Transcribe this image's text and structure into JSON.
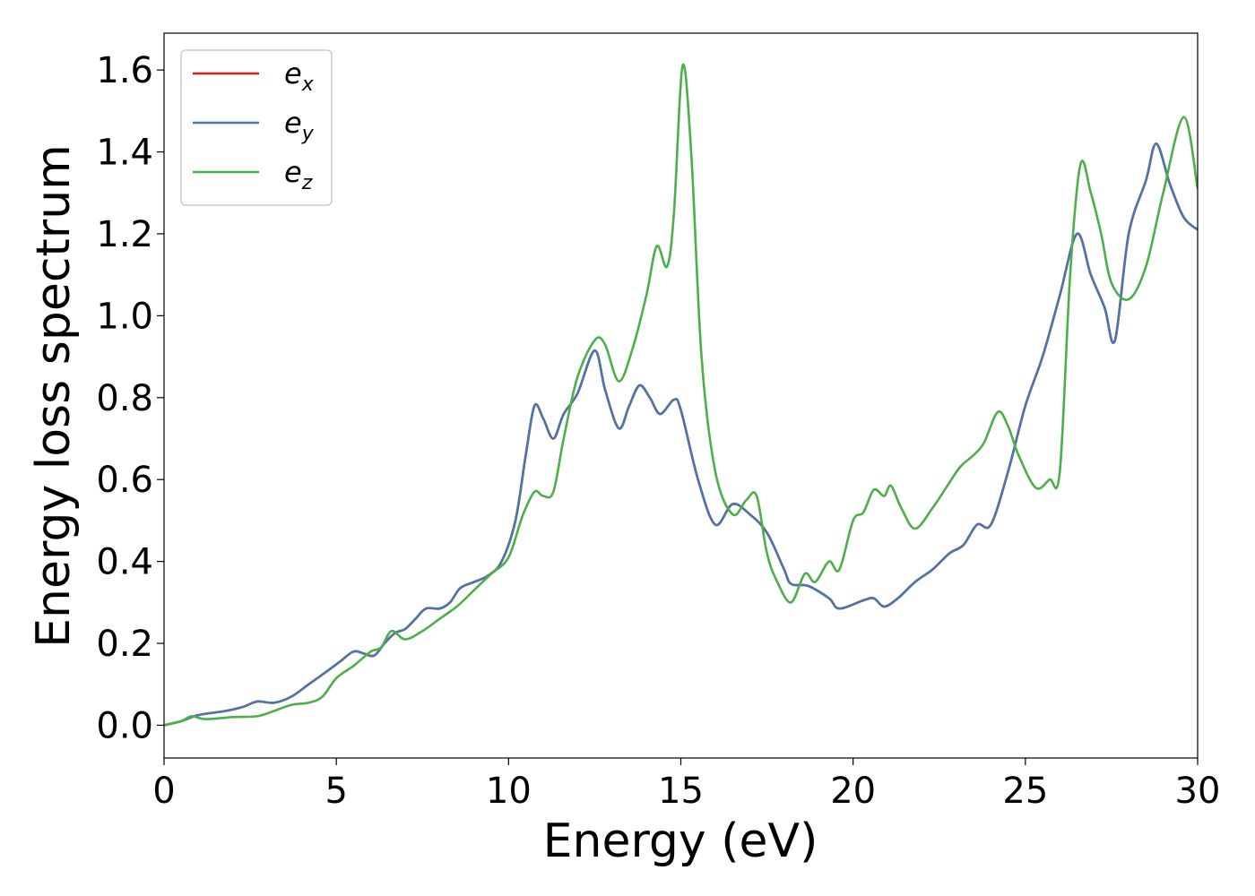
{
  "chart_data": {
    "type": "line",
    "xlabel": "Energy (eV)",
    "ylabel": "Energy loss spectrum",
    "xlim": [
      0,
      30
    ],
    "ylim": [
      -0.08,
      1.69
    ],
    "xticks": [
      0,
      5,
      10,
      15,
      20,
      25,
      30
    ],
    "xtick_labels": [
      "0",
      "5",
      "10",
      "15",
      "20",
      "25",
      "30"
    ],
    "yticks": [
      0.0,
      0.2,
      0.4,
      0.6,
      0.8,
      1.0,
      1.2,
      1.4,
      1.6
    ],
    "ytick_labels": [
      "0.0",
      "0.2",
      "0.4",
      "0.6",
      "0.8",
      "1.0",
      "1.2",
      "1.4",
      "1.6"
    ],
    "grid": false,
    "legend_position": "upper-left",
    "series": [
      {
        "name": "e_x",
        "legend_base": "e",
        "legend_sub": "x",
        "color": "#e41a1c",
        "points": [
          [
            0,
            0.0
          ],
          [
            0.5,
            0.01
          ],
          [
            1,
            0.025
          ],
          [
            1.8,
            0.035
          ],
          [
            2.3,
            0.045
          ],
          [
            2.7,
            0.058
          ],
          [
            3.2,
            0.055
          ],
          [
            3.7,
            0.07
          ],
          [
            4.2,
            0.1
          ],
          [
            4.7,
            0.13
          ],
          [
            5.1,
            0.155
          ],
          [
            5.5,
            0.18
          ],
          [
            5.8,
            0.175
          ],
          [
            6.1,
            0.17
          ],
          [
            6.4,
            0.2
          ],
          [
            6.7,
            0.225
          ],
          [
            7,
            0.235
          ],
          [
            7.3,
            0.26
          ],
          [
            7.6,
            0.285
          ],
          [
            8,
            0.285
          ],
          [
            8.3,
            0.3
          ],
          [
            8.6,
            0.335
          ],
          [
            9,
            0.35
          ],
          [
            9.4,
            0.365
          ],
          [
            9.8,
            0.4
          ],
          [
            10.2,
            0.5
          ],
          [
            10.5,
            0.66
          ],
          [
            10.75,
            0.78
          ],
          [
            11,
            0.75
          ],
          [
            11.3,
            0.7
          ],
          [
            11.6,
            0.76
          ],
          [
            12,
            0.81
          ],
          [
            12.5,
            0.915
          ],
          [
            12.8,
            0.82
          ],
          [
            13.2,
            0.725
          ],
          [
            13.5,
            0.78
          ],
          [
            13.8,
            0.83
          ],
          [
            14.1,
            0.8
          ],
          [
            14.4,
            0.76
          ],
          [
            14.8,
            0.795
          ],
          [
            15,
            0.77
          ],
          [
            15.5,
            0.6
          ],
          [
            16,
            0.49
          ],
          [
            16.5,
            0.54
          ],
          [
            17,
            0.515
          ],
          [
            17.5,
            0.47
          ],
          [
            18,
            0.38
          ],
          [
            18.2,
            0.345
          ],
          [
            18.7,
            0.34
          ],
          [
            19.3,
            0.31
          ],
          [
            19.6,
            0.285
          ],
          [
            20.3,
            0.305
          ],
          [
            20.6,
            0.31
          ],
          [
            20.9,
            0.29
          ],
          [
            21.3,
            0.31
          ],
          [
            21.8,
            0.35
          ],
          [
            22.3,
            0.38
          ],
          [
            22.8,
            0.42
          ],
          [
            23.2,
            0.44
          ],
          [
            23.6,
            0.49
          ],
          [
            24,
            0.49
          ],
          [
            24.5,
            0.62
          ],
          [
            25,
            0.78
          ],
          [
            25.5,
            0.9
          ],
          [
            26,
            1.05
          ],
          [
            26.5,
            1.2
          ],
          [
            26.9,
            1.1
          ],
          [
            27.3,
            1.02
          ],
          [
            27.6,
            0.94
          ],
          [
            28,
            1.2
          ],
          [
            28.5,
            1.33
          ],
          [
            28.8,
            1.42
          ],
          [
            29.2,
            1.32
          ],
          [
            29.6,
            1.24
          ],
          [
            30,
            1.21
          ]
        ]
      },
      {
        "name": "e_y",
        "legend_base": "e",
        "legend_sub": "y",
        "color": "#4a76aa",
        "points": [
          [
            0,
            0.0
          ],
          [
            0.5,
            0.01
          ],
          [
            1,
            0.025
          ],
          [
            1.8,
            0.035
          ],
          [
            2.3,
            0.045
          ],
          [
            2.7,
            0.058
          ],
          [
            3.2,
            0.055
          ],
          [
            3.7,
            0.07
          ],
          [
            4.2,
            0.1
          ],
          [
            4.7,
            0.13
          ],
          [
            5.1,
            0.155
          ],
          [
            5.5,
            0.18
          ],
          [
            5.8,
            0.175
          ],
          [
            6.1,
            0.17
          ],
          [
            6.4,
            0.2
          ],
          [
            6.7,
            0.225
          ],
          [
            7,
            0.235
          ],
          [
            7.3,
            0.26
          ],
          [
            7.6,
            0.285
          ],
          [
            8,
            0.285
          ],
          [
            8.3,
            0.3
          ],
          [
            8.6,
            0.335
          ],
          [
            9,
            0.35
          ],
          [
            9.4,
            0.365
          ],
          [
            9.8,
            0.4
          ],
          [
            10.2,
            0.5
          ],
          [
            10.5,
            0.66
          ],
          [
            10.75,
            0.78
          ],
          [
            11,
            0.75
          ],
          [
            11.3,
            0.7
          ],
          [
            11.6,
            0.76
          ],
          [
            12,
            0.81
          ],
          [
            12.5,
            0.915
          ],
          [
            12.8,
            0.82
          ],
          [
            13.2,
            0.725
          ],
          [
            13.5,
            0.78
          ],
          [
            13.8,
            0.83
          ],
          [
            14.1,
            0.8
          ],
          [
            14.4,
            0.76
          ],
          [
            14.8,
            0.795
          ],
          [
            15,
            0.77
          ],
          [
            15.5,
            0.6
          ],
          [
            16,
            0.49
          ],
          [
            16.5,
            0.54
          ],
          [
            17,
            0.515
          ],
          [
            17.5,
            0.47
          ],
          [
            18,
            0.38
          ],
          [
            18.2,
            0.345
          ],
          [
            18.7,
            0.34
          ],
          [
            19.3,
            0.31
          ],
          [
            19.6,
            0.285
          ],
          [
            20.3,
            0.305
          ],
          [
            20.6,
            0.31
          ],
          [
            20.9,
            0.29
          ],
          [
            21.3,
            0.31
          ],
          [
            21.8,
            0.35
          ],
          [
            22.3,
            0.38
          ],
          [
            22.8,
            0.42
          ],
          [
            23.2,
            0.44
          ],
          [
            23.6,
            0.49
          ],
          [
            24,
            0.49
          ],
          [
            24.5,
            0.62
          ],
          [
            25,
            0.78
          ],
          [
            25.5,
            0.9
          ],
          [
            26,
            1.05
          ],
          [
            26.5,
            1.2
          ],
          [
            26.9,
            1.1
          ],
          [
            27.3,
            1.02
          ],
          [
            27.6,
            0.94
          ],
          [
            28,
            1.2
          ],
          [
            28.5,
            1.33
          ],
          [
            28.8,
            1.42
          ],
          [
            29.2,
            1.32
          ],
          [
            29.6,
            1.24
          ],
          [
            30,
            1.21
          ]
        ]
      },
      {
        "name": "e_z",
        "legend_base": "e",
        "legend_sub": "z",
        "color": "#4daf4a",
        "points": [
          [
            0,
            0.0
          ],
          [
            0.5,
            0.01
          ],
          [
            0.8,
            0.022
          ],
          [
            1.2,
            0.015
          ],
          [
            2,
            0.02
          ],
          [
            2.7,
            0.022
          ],
          [
            3.2,
            0.035
          ],
          [
            3.7,
            0.05
          ],
          [
            4.2,
            0.055
          ],
          [
            4.6,
            0.07
          ],
          [
            5,
            0.115
          ],
          [
            5.5,
            0.145
          ],
          [
            6,
            0.18
          ],
          [
            6.3,
            0.19
          ],
          [
            6.6,
            0.23
          ],
          [
            7,
            0.21
          ],
          [
            7.5,
            0.23
          ],
          [
            8,
            0.26
          ],
          [
            8.5,
            0.29
          ],
          [
            9,
            0.33
          ],
          [
            9.5,
            0.37
          ],
          [
            10,
            0.41
          ],
          [
            10.4,
            0.51
          ],
          [
            10.75,
            0.57
          ],
          [
            11,
            0.56
          ],
          [
            11.3,
            0.57
          ],
          [
            11.6,
            0.7
          ],
          [
            12,
            0.85
          ],
          [
            12.5,
            0.94
          ],
          [
            12.8,
            0.93
          ],
          [
            13.2,
            0.84
          ],
          [
            13.6,
            0.92
          ],
          [
            14,
            1.05
          ],
          [
            14.3,
            1.17
          ],
          [
            14.6,
            1.12
          ],
          [
            14.8,
            1.25
          ],
          [
            15.05,
            1.61
          ],
          [
            15.3,
            1.4
          ],
          [
            15.6,
            0.9
          ],
          [
            16,
            0.62
          ],
          [
            16.5,
            0.515
          ],
          [
            16.9,
            0.55
          ],
          [
            17.2,
            0.56
          ],
          [
            17.5,
            0.42
          ],
          [
            17.8,
            0.35
          ],
          [
            18.2,
            0.3
          ],
          [
            18.6,
            0.37
          ],
          [
            18.9,
            0.35
          ],
          [
            19.3,
            0.4
          ],
          [
            19.6,
            0.38
          ],
          [
            20,
            0.5
          ],
          [
            20.3,
            0.52
          ],
          [
            20.6,
            0.575
          ],
          [
            20.9,
            0.56
          ],
          [
            21.1,
            0.585
          ],
          [
            21.4,
            0.53
          ],
          [
            21.8,
            0.48
          ],
          [
            22.3,
            0.53
          ],
          [
            22.7,
            0.58
          ],
          [
            23.1,
            0.63
          ],
          [
            23.5,
            0.66
          ],
          [
            23.8,
            0.69
          ],
          [
            24.2,
            0.765
          ],
          [
            24.5,
            0.73
          ],
          [
            24.8,
            0.66
          ],
          [
            25.3,
            0.58
          ],
          [
            25.7,
            0.6
          ],
          [
            26,
            0.62
          ],
          [
            26.3,
            1.1
          ],
          [
            26.6,
            1.37
          ],
          [
            26.9,
            1.3
          ],
          [
            27.2,
            1.2
          ],
          [
            27.5,
            1.08
          ],
          [
            28,
            1.04
          ],
          [
            28.5,
            1.12
          ],
          [
            29,
            1.3
          ],
          [
            29.6,
            1.485
          ],
          [
            30,
            1.31
          ]
        ]
      }
    ]
  }
}
